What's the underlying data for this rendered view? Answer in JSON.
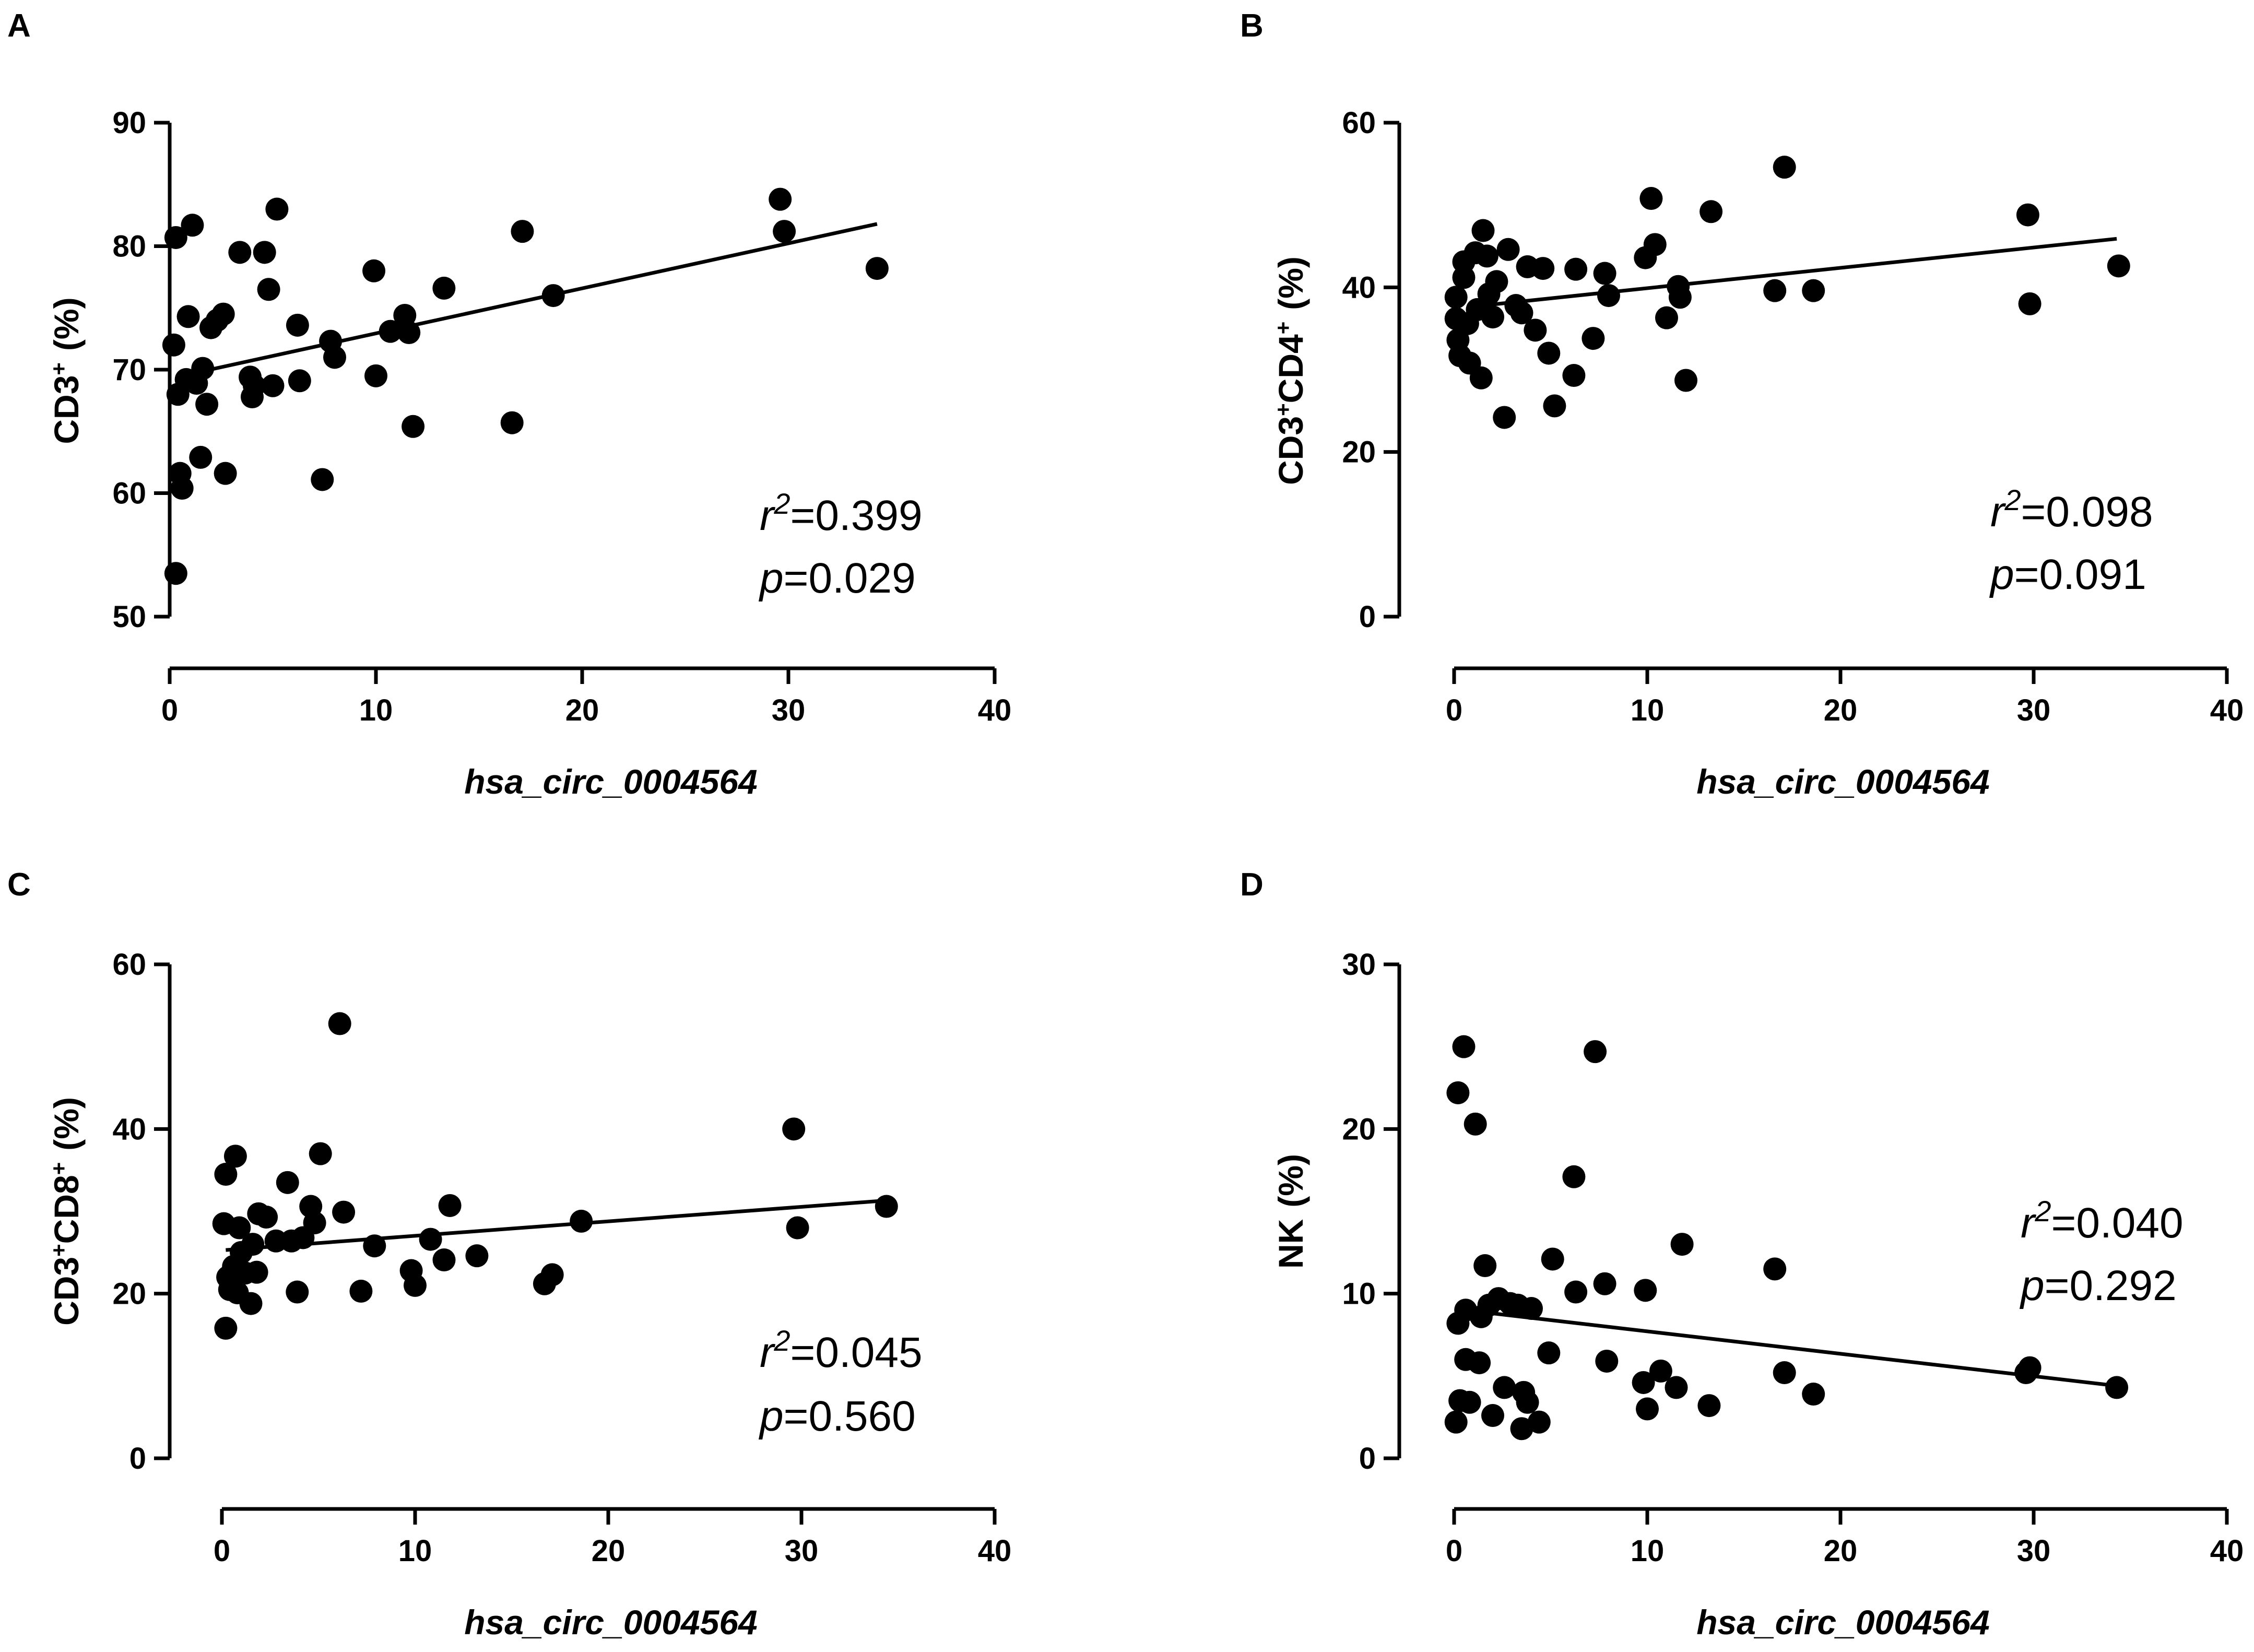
{
  "figure": {
    "panels": [
      "A",
      "B",
      "C",
      "D"
    ]
  },
  "chart_data": [
    {
      "type": "scatter",
      "panel": "A",
      "title": "",
      "xlabel": "hsa_circ_0004564",
      "ylabel_base": "CD3",
      "ylabel_sup": "+",
      "ylabel_unit": "(%)",
      "xlim": [
        0,
        40
      ],
      "ylim": [
        50,
        90
      ],
      "xticks": [
        0,
        10,
        20,
        30,
        40
      ],
      "yticks": [
        50,
        60,
        70,
        80,
        90
      ],
      "r2_label": "r",
      "r2_value": "=0.399",
      "p_label": "p",
      "p_value": "=0.029",
      "fit": {
        "x": [
          0.3,
          34.3
        ],
        "y": [
          69.4,
          81.8
        ]
      },
      "x": [
        0.2,
        0.3,
        0.3,
        0.5,
        0.6,
        0.4,
        0.8,
        0.9,
        1.1,
        1.3,
        1.5,
        1.6,
        1.8,
        2.0,
        2.3,
        2.7,
        2.6,
        3.4,
        3.9,
        4.0,
        4.1,
        4.6,
        4.8,
        5.0,
        5.2,
        6.2,
        6.3,
        7.4,
        7.8,
        8.0,
        9.9,
        10.0,
        10.7,
        11.4,
        11.6,
        11.8,
        13.3,
        16.6,
        17.1,
        18.6,
        29.6,
        29.8,
        34.3
      ],
      "y": [
        72.0,
        53.5,
        80.7,
        61.6,
        60.4,
        68.0,
        69.2,
        74.3,
        81.7,
        68.9,
        62.9,
        70.1,
        67.2,
        73.4,
        74.0,
        61.6,
        74.5,
        79.5,
        69.4,
        67.8,
        68.7,
        79.5,
        76.5,
        68.7,
        83.0,
        73.6,
        69.1,
        61.1,
        72.3,
        71.0,
        78.0,
        69.5,
        73.1,
        74.4,
        73.0,
        65.4,
        76.6,
        65.7,
        81.2,
        76.0,
        83.8,
        81.2,
        78.2
      ]
    },
    {
      "type": "scatter",
      "panel": "B",
      "title": "",
      "xlabel": "hsa_circ_0004564",
      "ylabel_base": "CD3",
      "ylabel_sup": "+",
      "ylabel_base2": "CD4",
      "ylabel_sup2": "+",
      "ylabel_unit": "(%)",
      "xlim": [
        0,
        40
      ],
      "ylim": [
        0,
        60
      ],
      "xticks": [
        0,
        10,
        20,
        30,
        40
      ],
      "yticks": [
        0,
        20,
        40,
        60
      ],
      "r2_label": "r",
      "r2_value": "=0.098",
      "p_label": "p",
      "p_value": "=0.091",
      "fit": {
        "x": [
          1.5,
          34.3
        ],
        "y": [
          37.8,
          45.9
        ]
      },
      "x": [
        0.1,
        0.1,
        0.2,
        0.3,
        0.5,
        0.5,
        0.7,
        0.8,
        1.1,
        1.2,
        1.4,
        1.5,
        1.7,
        1.8,
        2.0,
        2.2,
        2.6,
        2.8,
        3.2,
        3.5,
        3.8,
        4.2,
        4.6,
        4.9,
        5.2,
        6.2,
        6.3,
        7.2,
        7.8,
        8.0,
        9.9,
        10.2,
        10.4,
        11.0,
        11.6,
        11.7,
        12.0,
        13.3,
        16.6,
        17.1,
        18.6,
        29.7,
        29.8,
        34.4
      ],
      "y": [
        38.8,
        36.2,
        33.6,
        31.7,
        43.1,
        41.2,
        35.6,
        30.8,
        44.2,
        37.3,
        29.0,
        46.9,
        43.8,
        39.2,
        36.4,
        40.7,
        24.2,
        44.6,
        37.8,
        36.9,
        42.5,
        34.8,
        42.3,
        32.0,
        25.6,
        29.3,
        42.2,
        33.8,
        41.7,
        39.0,
        43.6,
        50.8,
        45.2,
        36.3,
        40.1,
        38.8,
        28.7,
        49.2,
        39.6,
        54.6,
        39.6,
        48.8,
        38.0,
        42.6
      ]
    },
    {
      "type": "scatter",
      "panel": "C",
      "title": "",
      "xlabel": "hsa_circ_0004564",
      "ylabel_base": "CD3",
      "ylabel_sup": "+",
      "ylabel_base2": "CD8",
      "ylabel_sup2": "+",
      "ylabel_unit": "(%)",
      "xlim": [
        0,
        40
      ],
      "ylim": [
        0,
        60
      ],
      "xticks": [
        0,
        10,
        20,
        30,
        40
      ],
      "yticks": [
        0,
        20,
        40,
        60
      ],
      "r2_label": "r",
      "r2_value": "=0.045",
      "p_label": "p",
      "p_value": "=0.560",
      "fit": {
        "x": [
          0.2,
          34.3
        ],
        "y": [
          25.3,
          31.3
        ]
      },
      "x": [
        0.1,
        0.2,
        0.2,
        0.3,
        0.4,
        0.5,
        0.6,
        0.7,
        0.8,
        0.9,
        1.0,
        1.2,
        1.5,
        1.6,
        1.8,
        1.9,
        2.3,
        2.8,
        3.4,
        3.6,
        3.9,
        4.2,
        4.6,
        4.8,
        5.1,
        6.1,
        6.3,
        7.2,
        7.9,
        9.8,
        10.0,
        10.8,
        11.5,
        11.8,
        13.2,
        16.7,
        17.1,
        18.6,
        29.6,
        29.8,
        34.4
      ],
      "y": [
        28.5,
        15.8,
        34.5,
        22.0,
        20.5,
        21.5,
        23.3,
        36.7,
        20.1,
        28.0,
        25.0,
        22.5,
        18.8,
        26.0,
        22.6,
        29.7,
        29.3,
        26.4,
        33.5,
        26.4,
        20.2,
        26.8,
        30.6,
        28.6,
        37.0,
        52.8,
        29.9,
        20.3,
        25.8,
        22.8,
        21.0,
        26.6,
        24.1,
        30.7,
        24.6,
        21.2,
        22.3,
        28.8,
        40.0,
        28.0,
        30.6
      ]
    },
    {
      "type": "scatter",
      "panel": "D",
      "title": "",
      "xlabel": "hsa_circ_0004564",
      "ylabel_base": "NK",
      "ylabel_unit": "(%)",
      "xlim": [
        0,
        40
      ],
      "ylim": [
        0,
        30
      ],
      "xticks": [
        0,
        10,
        20,
        30,
        40
      ],
      "yticks": [
        0,
        10,
        20,
        30
      ],
      "r2_label": "r",
      "r2_value": "=0.040",
      "p_label": "p",
      "p_value": "=0.292",
      "fit": {
        "x": [
          2.0,
          34.3
        ],
        "y": [
          8.8,
          4.4
        ]
      },
      "x": [
        0.1,
        0.2,
        0.2,
        0.3,
        0.5,
        0.6,
        0.6,
        0.8,
        1.1,
        1.3,
        1.4,
        1.6,
        1.8,
        2.0,
        2.3,
        2.6,
        2.9,
        3.3,
        3.5,
        3.6,
        3.8,
        4.0,
        4.4,
        4.9,
        5.1,
        6.2,
        6.3,
        7.3,
        7.8,
        7.9,
        9.8,
        9.9,
        10.0,
        10.7,
        11.5,
        11.8,
        13.2,
        16.6,
        17.1,
        18.6,
        29.6,
        29.8,
        34.3
      ],
      "y": [
        2.2,
        8.2,
        22.2,
        3.5,
        25.0,
        9.0,
        6.0,
        3.4,
        20.3,
        5.8,
        8.6,
        11.7,
        9.3,
        2.6,
        9.7,
        4.3,
        9.4,
        9.3,
        1.8,
        4.0,
        3.4,
        9.1,
        2.2,
        6.4,
        12.1,
        17.1,
        10.1,
        24.7,
        10.6,
        5.9,
        4.6,
        10.2,
        3.0,
        5.3,
        4.3,
        13.0,
        3.2,
        11.5,
        5.2,
        3.9,
        5.2,
        5.5,
        4.3
      ]
    }
  ]
}
